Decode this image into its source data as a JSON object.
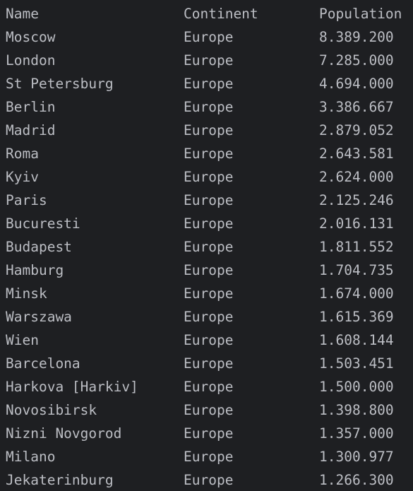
{
  "table": {
    "header": [
      "Name",
      "Continent",
      "Population"
    ],
    "rows": [
      [
        "Moscow",
        "Europe",
        "8.389.200"
      ],
      [
        "London",
        "Europe",
        "7.285.000"
      ],
      [
        "St Petersburg",
        "Europe",
        "4.694.000"
      ],
      [
        "Berlin",
        "Europe",
        "3.386.667"
      ],
      [
        "Madrid",
        "Europe",
        "2.879.052"
      ],
      [
        "Roma",
        "Europe",
        "2.643.581"
      ],
      [
        "Kyiv",
        "Europe",
        "2.624.000"
      ],
      [
        "Paris",
        "Europe",
        "2.125.246"
      ],
      [
        "Bucuresti",
        "Europe",
        "2.016.131"
      ],
      [
        "Budapest",
        "Europe",
        "1.811.552"
      ],
      [
        "Hamburg",
        "Europe",
        "1.704.735"
      ],
      [
        "Minsk",
        "Europe",
        "1.674.000"
      ],
      [
        "Warszawa",
        "Europe",
        "1.615.369"
      ],
      [
        "Wien",
        "Europe",
        "1.608.144"
      ],
      [
        "Barcelona",
        "Europe",
        "1.503.451"
      ],
      [
        "Harkova [Harkiv]",
        "Europe",
        "1.500.000"
      ],
      [
        "Novosibirsk",
        "Europe",
        "1.398.800"
      ],
      [
        "Nizni Novgorod",
        "Europe",
        "1.357.000"
      ],
      [
        "Milano",
        "Europe",
        "1.300.977"
      ],
      [
        "Jekaterinburg",
        "Europe",
        "1.266.300"
      ]
    ]
  }
}
